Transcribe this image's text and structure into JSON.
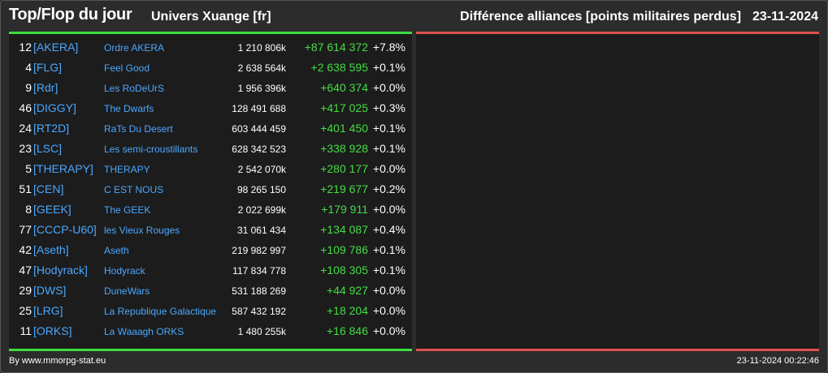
{
  "header": {
    "title": "Top/Flop du jour",
    "universe": "Univers Xuange [fr]",
    "subtitle": "Différence alliances [points militaires perdus]",
    "date": "23-11-2024"
  },
  "colors": {
    "top_accent": "#3ddc3d",
    "flop_accent": "#e05050",
    "tag_color": "#4aa8ff",
    "gain_color": "#44dd44"
  },
  "top_rows": [
    {
      "rank": "12",
      "tag": "[AKERA]",
      "name": "Ordre AKERA",
      "points": "1 210 806k",
      "diff": "+87 614 372",
      "pct": "+7.8%"
    },
    {
      "rank": "4",
      "tag": "[FLG]",
      "name": "Feel Good",
      "points": "2 638 564k",
      "diff": "+2 638 595",
      "pct": "+0.1%"
    },
    {
      "rank": "9",
      "tag": "[Rdr]",
      "name": "Les RoDeUrS",
      "points": "1 956 396k",
      "diff": "+640 374",
      "pct": "+0.0%"
    },
    {
      "rank": "46",
      "tag": "[DIGGY]",
      "name": "The Dwarfs",
      "points": "128 491 688",
      "diff": "+417 025",
      "pct": "+0.3%"
    },
    {
      "rank": "24",
      "tag": "[RT2D]",
      "name": "RaTs Du Desert",
      "points": "603 444 459",
      "diff": "+401 450",
      "pct": "+0.1%"
    },
    {
      "rank": "23",
      "tag": "[LSC]",
      "name": "Les semi-croustillants",
      "points": "628 342 523",
      "diff": "+338 928",
      "pct": "+0.1%"
    },
    {
      "rank": "5",
      "tag": "[THERAPY]",
      "name": "THERAPY",
      "points": "2 542 070k",
      "diff": "+280 177",
      "pct": "+0.0%"
    },
    {
      "rank": "51",
      "tag": "[CEN]",
      "name": "C EST NOUS",
      "points": "98 265 150",
      "diff": "+219 677",
      "pct": "+0.2%"
    },
    {
      "rank": "8",
      "tag": "[GEEK]",
      "name": "The GEEK",
      "points": "2 022 699k",
      "diff": "+179 911",
      "pct": "+0.0%"
    },
    {
      "rank": "77",
      "tag": "[CCCP-U60]",
      "name": "les Vieux Rouges",
      "points": "31 061 434",
      "diff": "+134 087",
      "pct": "+0.4%"
    },
    {
      "rank": "42",
      "tag": "[Aseth]",
      "name": "Aseth",
      "points": "219 982 997",
      "diff": "+109 786",
      "pct": "+0.1%"
    },
    {
      "rank": "47",
      "tag": "[Hodyrack]",
      "name": "Hodyrack",
      "points": "117 834 778",
      "diff": "+108 305",
      "pct": "+0.1%"
    },
    {
      "rank": "29",
      "tag": "[DWS]",
      "name": "DuneWars",
      "points": "531 188 269",
      "diff": "+44 927",
      "pct": "+0.0%"
    },
    {
      "rank": "25",
      "tag": "[LRG]",
      "name": "La Republique Galactique",
      "points": "587 432 192",
      "diff": "+18 204",
      "pct": "+0.0%"
    },
    {
      "rank": "11",
      "tag": "[ORKS]",
      "name": "La Waaagh ORKS",
      "points": "1 480 255k",
      "diff": "+16 846",
      "pct": "+0.0%"
    }
  ],
  "footer": {
    "source": "By www.mmorpg-stat.eu",
    "timestamp": "23-11-2024 00:22:46"
  }
}
